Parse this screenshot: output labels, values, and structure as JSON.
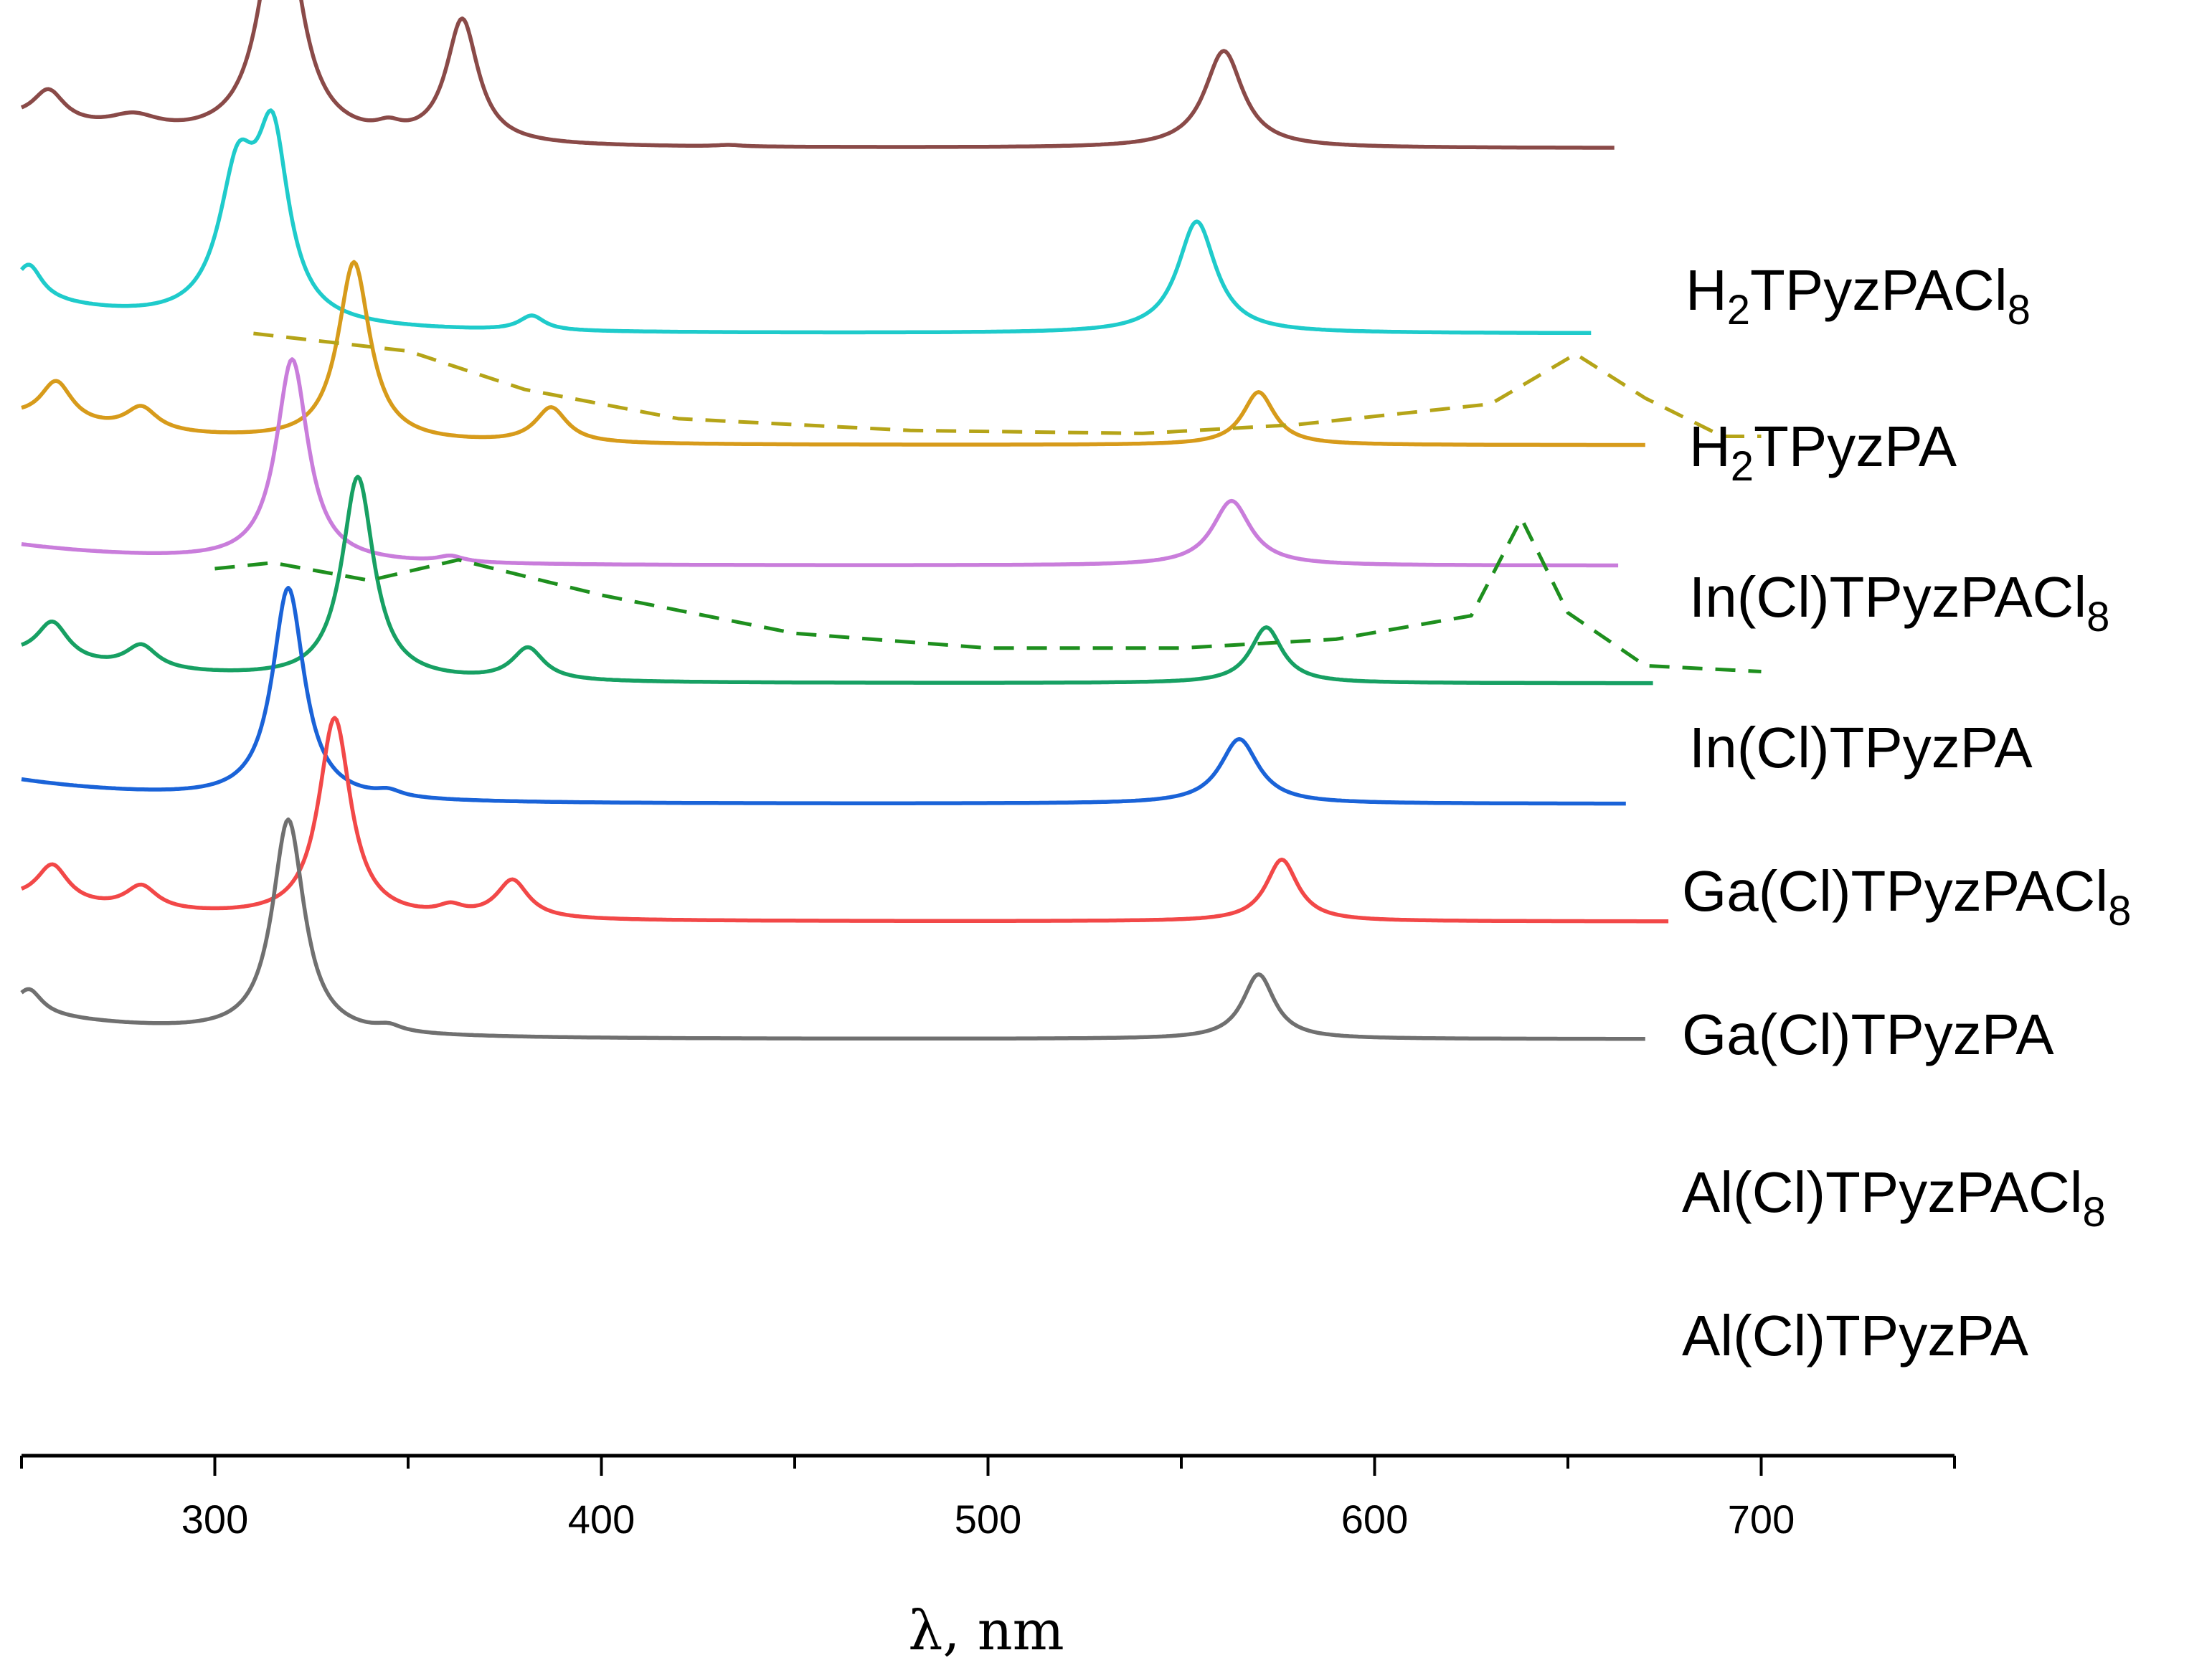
{
  "chart_data": {
    "type": "line",
    "title": "",
    "xlabel": "λ, nm",
    "ylabel": "",
    "xlim": [
      250,
      750
    ],
    "x_ticks": [
      300,
      400,
      500,
      600,
      700
    ],
    "x_tick_labels": [
      "300",
      "400",
      "500",
      "600",
      "700"
    ],
    "minor_tick_step": 50,
    "grid": false,
    "layout_note": "stacked absorption spectra, each normalized and vertically offset",
    "series": [
      {
        "name": "H2TPyzPACl8",
        "label_main": "H",
        "label_sub1": "2",
        "label_mid": "TPyzPACl",
        "label_sub2": "8",
        "color": "#8a4a48",
        "dashed": false,
        "x_range": [
          250,
          662
        ],
        "x_start": 250,
        "baseline_level": 0.63,
        "start_level": 0.72,
        "peaks": [
          {
            "x": 257,
            "h": 0.11,
            "w": 5
          },
          {
            "x": 279,
            "h": 0.05,
            "w": 8
          },
          {
            "x": 317,
            "h": 0.86,
            "w": 6
          },
          {
            "x": 345,
            "h": 0.03,
            "w": 4
          },
          {
            "x": 364,
            "h": 0.42,
            "w": 5
          },
          {
            "x": 433,
            "h": 0.005,
            "w": 4
          },
          {
            "x": 561,
            "h": 0.33,
            "w": 6
          }
        ]
      },
      {
        "name": "H2TPyzPA",
        "label_main": "H",
        "label_sub1": "2",
        "label_mid": "TPyzPA",
        "label_sub2": "",
        "color": "#1fcbcb",
        "dashed": false,
        "x_range": [
          250,
          656
        ],
        "x_start": 250,
        "baseline_level": 0.0,
        "start_level": 0.12,
        "peaks": [
          {
            "x": 252,
            "h": 0.11,
            "w": 4
          },
          {
            "x": 306,
            "h": 0.48,
            "w": 6
          },
          {
            "x": 315,
            "h": 0.58,
            "w": 5
          },
          {
            "x": 382,
            "h": 0.05,
            "w": 4
          },
          {
            "x": 554,
            "h": 0.38,
            "w": 6
          }
        ]
      },
      {
        "name": "In(Cl)TPyzPACl8",
        "label_main": "In(Cl)TPyzPACl",
        "label_sub1": "",
        "label_mid": "",
        "label_sub2": "8",
        "color": "#d79b1b",
        "dashed": false,
        "x_range": [
          250,
          670
        ],
        "x_start": 250,
        "baseline_level": -0.38,
        "start_level": -0.29,
        "peaks": [
          {
            "x": 259,
            "h": 0.14,
            "w": 5
          },
          {
            "x": 281,
            "h": 0.08,
            "w": 5
          },
          {
            "x": 336,
            "h": 0.61,
            "w": 5
          },
          {
            "x": 387,
            "h": 0.12,
            "w": 5
          },
          {
            "x": 570,
            "h": 0.18,
            "w": 5
          }
        ]
      },
      {
        "name": "In(Cl)TPyzPACl8 (dashed)",
        "color": "#b5a418",
        "dashed": true,
        "x_range": [
          310,
          700
        ],
        "points": [
          [
            310,
            0.0
          ],
          [
            330,
            -0.03
          ],
          [
            350,
            -0.06
          ],
          [
            380,
            -0.19
          ],
          [
            420,
            -0.29
          ],
          [
            480,
            -0.33
          ],
          [
            540,
            -0.34
          ],
          [
            580,
            -0.31
          ],
          [
            630,
            -0.24
          ],
          [
            652,
            -0.07
          ],
          [
            670,
            -0.22
          ],
          [
            690,
            -0.35
          ],
          [
            700,
            -0.35
          ]
        ]
      },
      {
        "name": "In(Cl)TPyzPA",
        "label_main": "In(Cl)TPyzPA",
        "label_sub1": "",
        "label_mid": "",
        "label_sub2": "",
        "color": "#c97ddb",
        "dashed": false,
        "x_range": [
          250,
          663
        ],
        "x_start": 250,
        "baseline_level": -0.79,
        "start_level": -0.72,
        "peaks": [
          {
            "x": 320,
            "h": 0.69,
            "w": 5
          },
          {
            "x": 361,
            "h": 0.02,
            "w": 4
          },
          {
            "x": 563,
            "h": 0.22,
            "w": 6
          }
        ]
      },
      {
        "name": "Ga(Cl)TPyzPACl8",
        "label_main": "Ga(Cl)TPyzPACl",
        "label_sub1": "",
        "label_mid": "",
        "label_sub2": "8",
        "color": "#17a063",
        "dashed": false,
        "x_range": [
          250,
          672
        ],
        "x_start": 250,
        "baseline_level": -1.19,
        "start_level": -1.1,
        "peaks": [
          {
            "x": 258,
            "h": 0.13,
            "w": 5
          },
          {
            "x": 281,
            "h": 0.08,
            "w": 5
          },
          {
            "x": 337,
            "h": 0.69,
            "w": 5
          },
          {
            "x": 381,
            "h": 0.11,
            "w": 5
          },
          {
            "x": 572,
            "h": 0.19,
            "w": 5
          }
        ]
      },
      {
        "name": "Ga(Cl)TPyzPACl8 (dashed)",
        "color": "#1e8f1e",
        "dashed": true,
        "x_range": [
          300,
          700
        ],
        "points": [
          [
            300,
            -0.8
          ],
          [
            315,
            -0.78
          ],
          [
            340,
            -0.84
          ],
          [
            363,
            -0.77
          ],
          [
            400,
            -0.89
          ],
          [
            450,
            -1.02
          ],
          [
            500,
            -1.07
          ],
          [
            550,
            -1.07
          ],
          [
            590,
            -1.04
          ],
          [
            625,
            -0.96
          ],
          [
            638,
            -0.63
          ],
          [
            650,
            -0.95
          ],
          [
            670,
            -1.13
          ],
          [
            700,
            -1.15
          ]
        ]
      },
      {
        "name": "Ga(Cl)TPyzPA",
        "label_main": "Ga(Cl)TPyzPA",
        "label_sub1": "",
        "label_mid": "",
        "label_sub2": "",
        "color": "#1a63d8",
        "dashed": false,
        "x_range": [
          250,
          665
        ],
        "x_start": 250,
        "baseline_level": -1.6,
        "start_level": -1.52,
        "peaks": [
          {
            "x": 319,
            "h": 0.72,
            "w": 5
          },
          {
            "x": 345,
            "h": 0.02,
            "w": 4
          },
          {
            "x": 565,
            "h": 0.22,
            "w": 6
          }
        ]
      },
      {
        "name": "Al(Cl)TPyzPACl8",
        "label_main": "Al(Cl)TPyzPACl",
        "label_sub1": "",
        "label_mid": "",
        "label_sub2": "8",
        "color": "#f24848",
        "dashed": false,
        "x_range": [
          250,
          676
        ],
        "x_start": 250,
        "baseline_level": -2.0,
        "start_level": -1.93,
        "peaks": [
          {
            "x": 258,
            "h": 0.13,
            "w": 5
          },
          {
            "x": 281,
            "h": 0.08,
            "w": 5
          },
          {
            "x": 331,
            "h": 0.68,
            "w": 5
          },
          {
            "x": 361,
            "h": 0.03,
            "w": 4
          },
          {
            "x": 377,
            "h": 0.13,
            "w": 5
          },
          {
            "x": 576,
            "h": 0.21,
            "w": 5
          }
        ]
      },
      {
        "name": "Al(Cl)TPyzPA",
        "label_main": "Al(Cl)TPyzPA",
        "label_sub1": "",
        "label_mid": "",
        "label_sub2": "",
        "color": "#707070",
        "dashed": false,
        "x_range": [
          250,
          670
        ],
        "x_start": 250,
        "baseline_level": -2.4,
        "start_level": -2.31,
        "peaks": [
          {
            "x": 252,
            "h": 0.08,
            "w": 4
          },
          {
            "x": 319,
            "h": 0.73,
            "w": 5
          },
          {
            "x": 345,
            "h": 0.02,
            "w": 4
          },
          {
            "x": 570,
            "h": 0.22,
            "w": 5
          }
        ]
      }
    ]
  }
}
